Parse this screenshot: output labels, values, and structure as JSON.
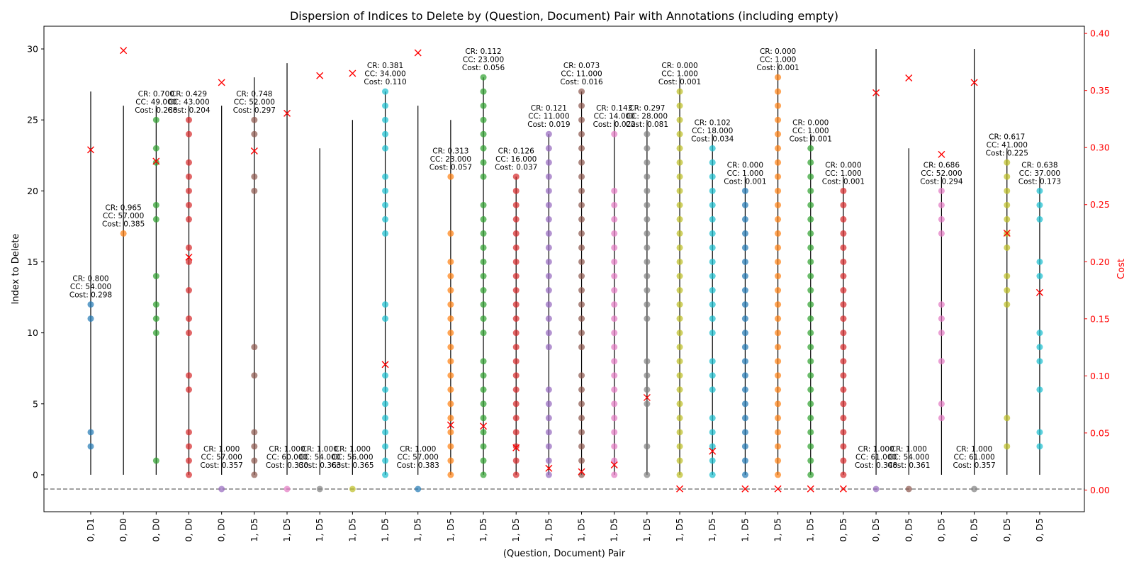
{
  "chart_data": {
    "type": "scatter",
    "title": "Dispersion of Indices to Delete by (Question, Document) Pair with Annotations (including empty)",
    "xlabel": "(Question, Document) Pair",
    "ylabel": "Index to Delete",
    "y2label": "Cost",
    "ylim": [
      -2.6,
      31.6
    ],
    "y2lim": [
      -0.019,
      0.4063
    ],
    "yticks": [
      0,
      5,
      10,
      15,
      20,
      25,
      30
    ],
    "y2ticks": [
      "0.00",
      "0.05",
      "0.10",
      "0.15",
      "0.20",
      "0.25",
      "0.30",
      "0.35",
      "0.40"
    ],
    "empty_marker_y": -1,
    "grid": false,
    "colors": {
      "axis_right": "#ff0000",
      "cost_marker": "#ff0000",
      "vline": "#000000",
      "baseline": "#808080",
      "palette": [
        "#1f77b4",
        "#ff7f0e",
        "#2ca02c",
        "#d62728",
        "#9467bd",
        "#8c564b",
        "#e377c2",
        "#7f7f7f",
        "#bcbd22",
        "#17becf"
      ]
    },
    "pairs": [
      {
        "label": "0, D1",
        "vmax": 27,
        "indices": [
          2,
          3,
          11,
          12
        ],
        "cost": 0.298,
        "annot": [
          "CR: 0.800",
          "CC: 54.000",
          "Cost: 0.298"
        ]
      },
      {
        "label": "0, D0",
        "vmax": 26,
        "indices": [
          17
        ],
        "cost": 0.385,
        "annot": [
          "CR: 0.965",
          "CC: 57.000",
          "Cost: 0.385"
        ]
      },
      {
        "label": "0, D0",
        "vmax": 26,
        "indices": [
          1,
          10,
          11,
          12,
          14,
          18,
          19,
          22,
          23,
          25
        ],
        "cost": 0.288,
        "annot": [
          "CR: 0.700",
          "CC: 49.000",
          "Cost: 0.288"
        ]
      },
      {
        "label": "0, D0",
        "vmax": 26,
        "indices": [
          0,
          1,
          2,
          3,
          6,
          7,
          10,
          11,
          13,
          15,
          16,
          18,
          19,
          20,
          21,
          22,
          24,
          25
        ],
        "cost": 0.204,
        "annot": [
          "CR: 0.429",
          "CC: 43.000",
          "Cost: 0.204"
        ]
      },
      {
        "label": "0, D0",
        "vmax": 26,
        "indices": [],
        "cost": 0.357,
        "annot": [
          "CR: 1.000",
          "CC: 57.000",
          "Cost: 0.357"
        ]
      },
      {
        "label": "1, D5",
        "vmax": 28,
        "indices": [
          0,
          1,
          2,
          3,
          7,
          9,
          20,
          21,
          24,
          25
        ],
        "cost": 0.297,
        "annot": [
          "CR: 0.748",
          "CC: 52.000",
          "Cost: 0.297"
        ]
      },
      {
        "label": "1, D5",
        "vmax": 29,
        "indices": [],
        "cost": 0.33,
        "annot": [
          "CR: 1.000",
          "CC: 60.000",
          "Cost: 0.330"
        ]
      },
      {
        "label": "1, D5",
        "vmax": 23,
        "indices": [],
        "cost": 0.363,
        "annot": [
          "CR: 1.000",
          "CC: 54.000",
          "Cost: 0.363"
        ]
      },
      {
        "label": "1, D5",
        "vmax": 25,
        "indices": [],
        "cost": 0.365,
        "annot": [
          "CR: 1.000",
          "CC: 56.000",
          "Cost: 0.365"
        ]
      },
      {
        "label": "1, D5",
        "vmax": 27,
        "indices": [
          0,
          1,
          2,
          3,
          4,
          5,
          6,
          7,
          11,
          12,
          17,
          18,
          19,
          20,
          21,
          23,
          24,
          25,
          26,
          27
        ],
        "cost": 0.11,
        "annot": [
          "CR: 0.381",
          "CC: 34.000",
          "Cost: 0.110"
        ]
      },
      {
        "label": "1, D5",
        "vmax": 26,
        "indices": [],
        "cost": 0.383,
        "annot": [
          "CR: 1.000",
          "CC: 57.000",
          "Cost: 0.383"
        ]
      },
      {
        "label": "1, D5",
        "vmax": 25,
        "indices": [
          0,
          1,
          2,
          3,
          4,
          5,
          6,
          7,
          8,
          9,
          10,
          11,
          12,
          13,
          14,
          15,
          17,
          21
        ],
        "cost": 0.057,
        "annot": [
          "CR: 0.313",
          "CC: 23.000",
          "Cost: 0.057"
        ]
      },
      {
        "label": "1, D5",
        "vmax": 28,
        "indices": [
          0,
          1,
          2,
          3,
          4,
          5,
          6,
          7,
          8,
          10,
          11,
          12,
          13,
          14,
          15,
          16,
          17,
          18,
          19,
          21,
          22,
          23,
          24,
          25,
          26,
          27,
          28
        ],
        "cost": 0.056,
        "annot": [
          "CR: 0.112",
          "CC: 23.000",
          "Cost: 0.056"
        ]
      },
      {
        "label": "1, D5",
        "vmax": 21,
        "indices": [
          0,
          1,
          2,
          3,
          4,
          5,
          6,
          7,
          8,
          9,
          10,
          11,
          12,
          13,
          14,
          15,
          16,
          17,
          18,
          19,
          20,
          21
        ],
        "cost": 0.037,
        "annot": [
          "CR: 0.126",
          "CC: 16.000",
          "Cost: 0.037"
        ]
      },
      {
        "label": "1, D5",
        "vmax": 24,
        "indices": [
          0,
          1,
          2,
          3,
          4,
          5,
          6,
          9,
          10,
          11,
          12,
          13,
          14,
          15,
          16,
          17,
          18,
          19,
          20,
          21,
          22,
          23,
          24
        ],
        "cost": 0.019,
        "annot": [
          "CR: 0.121",
          "CC: 11.000",
          "Cost: 0.019"
        ]
      },
      {
        "label": "1, D5",
        "vmax": 27,
        "indices": [
          0,
          1,
          2,
          3,
          4,
          5,
          6,
          7,
          9,
          10,
          11,
          12,
          13,
          14,
          15,
          16,
          17,
          18,
          19,
          20,
          21,
          22,
          23,
          24,
          25,
          26,
          27
        ],
        "cost": 0.016,
        "annot": [
          "CR: 0.073",
          "CC: 11.000",
          "Cost: 0.016"
        ]
      },
      {
        "label": "1, D5",
        "vmax": 25,
        "indices": [
          0,
          1,
          2,
          3,
          4,
          5,
          6,
          7,
          8,
          9,
          10,
          11,
          12,
          13,
          14,
          15,
          16,
          17,
          18,
          19,
          20,
          24
        ],
        "cost": 0.022,
        "annot": [
          "CR: 0.143",
          "CC: 14.000",
          "Cost: 0.022"
        ]
      },
      {
        "label": "1, D5",
        "vmax": 25,
        "indices": [
          0,
          2,
          5,
          6,
          7,
          8,
          11,
          12,
          13,
          14,
          15,
          16,
          17,
          18,
          19,
          20,
          21,
          22,
          23,
          24
        ],
        "cost": 0.081,
        "annot": [
          "CR: 0.297",
          "CC: 28.000",
          "Cost: 0.081"
        ]
      },
      {
        "label": "1, D5",
        "vmax": 28,
        "indices": [
          0,
          1,
          2,
          3,
          4,
          5,
          6,
          7,
          8,
          9,
          10,
          11,
          12,
          13,
          14,
          15,
          16,
          17,
          18,
          19,
          20,
          21,
          22,
          23,
          24,
          25,
          26,
          27
        ],
        "cost": 0.001,
        "annot": [
          "CR: 0.000",
          "CC: 1.000",
          "Cost: 0.001"
        ]
      },
      {
        "label": "1, D5",
        "vmax": 24,
        "indices": [
          0,
          1,
          2,
          3,
          4,
          6,
          7,
          8,
          10,
          11,
          12,
          13,
          14,
          15,
          16,
          17,
          18,
          19,
          20,
          21,
          22,
          23
        ],
        "cost": 0.034,
        "annot": [
          "CR: 0.102",
          "CC: 18.000",
          "Cost: 0.034"
        ]
      },
      {
        "label": "1, D5",
        "vmax": 21,
        "indices": [
          0,
          1,
          2,
          3,
          4,
          5,
          6,
          7,
          8,
          9,
          10,
          11,
          12,
          13,
          14,
          15,
          16,
          17,
          18,
          19,
          20
        ],
        "cost": 0.001,
        "annot": [
          "CR: 0.000",
          "CC: 1.000",
          "Cost: 0.001"
        ]
      },
      {
        "label": "1, D5",
        "vmax": 29,
        "indices": [
          0,
          1,
          2,
          3,
          4,
          5,
          6,
          7,
          8,
          9,
          10,
          11,
          12,
          13,
          14,
          15,
          16,
          17,
          18,
          19,
          20,
          21,
          22,
          23,
          24,
          25,
          26,
          27,
          28
        ],
        "cost": 0.001,
        "annot": [
          "CR: 0.000",
          "CC: 1.000",
          "Cost: 0.001"
        ]
      },
      {
        "label": "1, D5",
        "vmax": 24,
        "indices": [
          0,
          1,
          2,
          3,
          4,
          5,
          6,
          7,
          8,
          9,
          10,
          11,
          12,
          13,
          14,
          15,
          16,
          17,
          18,
          19,
          20,
          21,
          22,
          23
        ],
        "cost": 0.001,
        "annot": [
          "CR: 0.000",
          "CC: 1.000",
          "Cost: 0.001"
        ]
      },
      {
        "label": "0, D5",
        "vmax": 21,
        "indices": [
          0,
          1,
          2,
          3,
          4,
          5,
          6,
          7,
          8,
          9,
          10,
          11,
          12,
          13,
          14,
          15,
          16,
          17,
          18,
          19,
          20
        ],
        "cost": 0.001,
        "annot": [
          "CR: 0.000",
          "CC: 1.000",
          "Cost: 0.001"
        ]
      },
      {
        "label": "0, D5",
        "vmax": 30,
        "indices": [],
        "cost": 0.348,
        "annot": [
          "CR: 1.000",
          "CC: 61.000",
          "Cost: 0.348"
        ]
      },
      {
        "label": "0, D5",
        "vmax": 23,
        "indices": [],
        "cost": 0.361,
        "annot": [
          "CR: 1.000",
          "CC: 54.000",
          "Cost: 0.361"
        ]
      },
      {
        "label": "0, D5",
        "vmax": 21,
        "indices": [
          4,
          5,
          8,
          10,
          11,
          12,
          17,
          18,
          19,
          20
        ],
        "cost": 0.294,
        "annot": [
          "CR: 0.686",
          "CC: 52.000",
          "Cost: 0.294"
        ]
      },
      {
        "label": "0, D5",
        "vmax": 30,
        "indices": [],
        "cost": 0.357,
        "annot": [
          "CR: 1.000",
          "CC: 61.000",
          "Cost: 0.357"
        ]
      },
      {
        "label": "0, D5",
        "vmax": 23,
        "indices": [
          2,
          4,
          12,
          13,
          14,
          16,
          17,
          18,
          19,
          20,
          21,
          22
        ],
        "cost": 0.225,
        "annot": [
          "CR: 0.617",
          "CC: 41.000",
          "Cost: 0.225"
        ]
      },
      {
        "label": "0, D5",
        "vmax": 21,
        "indices": [
          2,
          3,
          6,
          8,
          9,
          10,
          14,
          15,
          18,
          19,
          20
        ],
        "cost": 0.173,
        "annot": [
          "CR: 0.638",
          "CC: 37.000",
          "Cost: 0.173"
        ]
      }
    ]
  }
}
